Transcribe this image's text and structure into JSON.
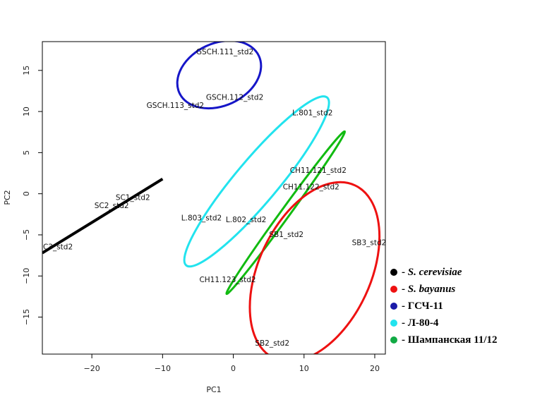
{
  "chart_data": {
    "type": "scatter",
    "xlabel": "PC1",
    "ylabel": "PC2",
    "xlim": [
      -27,
      21.5
    ],
    "ylim": [
      -19.5,
      18.5
    ],
    "xticks": [
      -20,
      -10,
      0,
      10,
      20
    ],
    "yticks": [
      -15,
      -10,
      -5,
      0,
      5,
      10,
      15
    ],
    "points": [
      {
        "label": "GSCH.111_std2",
        "x": -1.2,
        "y": 17.2
      },
      {
        "label": "GSCH.112_std2",
        "x": 0.2,
        "y": 11.7
      },
      {
        "label": "GSCH.113_std2",
        "x": -8.2,
        "y": 10.7
      },
      {
        "label": "L.801_std2",
        "x": 11.2,
        "y": 9.8
      },
      {
        "label": "L.803_std2",
        "x": -4.5,
        "y": -3.0
      },
      {
        "label": "L.802_std2",
        "x": 1.8,
        "y": -3.2
      },
      {
        "label": "CH11.121_std2",
        "x": 12.0,
        "y": 2.8
      },
      {
        "label": "CH11.122_std2",
        "x": 11.0,
        "y": 0.8
      },
      {
        "label": "CH11.123_std2",
        "x": -0.8,
        "y": -10.5
      },
      {
        "label": "SC1_std2",
        "x": -14.2,
        "y": -0.5
      },
      {
        "label": "SC2_std2",
        "x": -17.2,
        "y": -1.5
      },
      {
        "label": "C3_std2",
        "x": -24.8,
        "y": -6.5
      },
      {
        "label": "SB1_std2",
        "x": 7.5,
        "y": -5.0
      },
      {
        "label": "SB3_std2",
        "x": 19.2,
        "y": -6.0
      },
      {
        "label": "SB2_std2",
        "x": 5.5,
        "y": -18.2
      }
    ],
    "ellipses": [
      {
        "group": "GSCH-11",
        "color": "#1616c8",
        "cx": -2.0,
        "cy": 14.5,
        "rx": 6.2,
        "ry": 3.8,
        "angle_deg": 25
      },
      {
        "group": "L-80-4",
        "color": "#22e3ee",
        "cx": 3.3,
        "cy": 1.5,
        "rx": 15.5,
        "ry": 2.6,
        "angle_deg": 50
      },
      {
        "group": "Champagne",
        "color": "#11bb11",
        "cx": 7.4,
        "cy": -2.3,
        "rx": 14.2,
        "ry": 0.55,
        "angle_deg": 54
      },
      {
        "group": "S. bayanus",
        "color": "#ee1111",
        "cx": 11.5,
        "cy": -9.5,
        "rx": 13.5,
        "ry": 6.8,
        "angle_deg": 65
      }
    ],
    "lines": [
      {
        "group": "S. cerevisiae",
        "color": "#000000",
        "x1": -27.0,
        "y1": -7.2,
        "x2": -10.0,
        "y2": 1.8
      }
    ],
    "legend": {
      "placement": "bottom-right",
      "items": [
        {
          "label": "- S. cerevisiae",
          "color": "#000000",
          "italic": true
        },
        {
          "label": "- S. bayanus",
          "color": "#ee1111",
          "italic": true
        },
        {
          "label": "- ГСЧ-11",
          "color": "#1a1aa8",
          "italic": false
        },
        {
          "label": "- Л-80-4",
          "color": "#22e3ee",
          "italic": false
        },
        {
          "label": "- Шампанская 11/12",
          "color": "#11aa44",
          "italic": false
        }
      ]
    }
  }
}
